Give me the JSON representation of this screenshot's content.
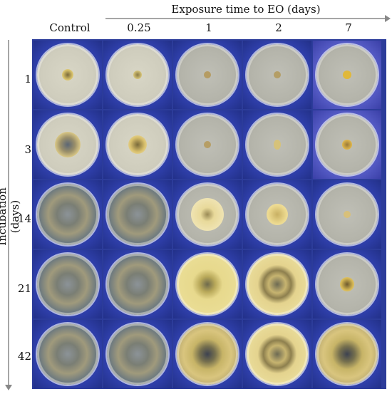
{
  "header": {
    "top_axis_title": "Exposure time to EO (days)",
    "columns": [
      "Control",
      "0.25",
      "1",
      "2",
      "7"
    ]
  },
  "side": {
    "left_axis_title": "Incubation (days)",
    "rows": [
      "1",
      "3",
      "14",
      "21",
      "42"
    ]
  },
  "colors": {
    "background_blue": "#3040a8",
    "plate_rim": "#e6e8f5"
  }
}
